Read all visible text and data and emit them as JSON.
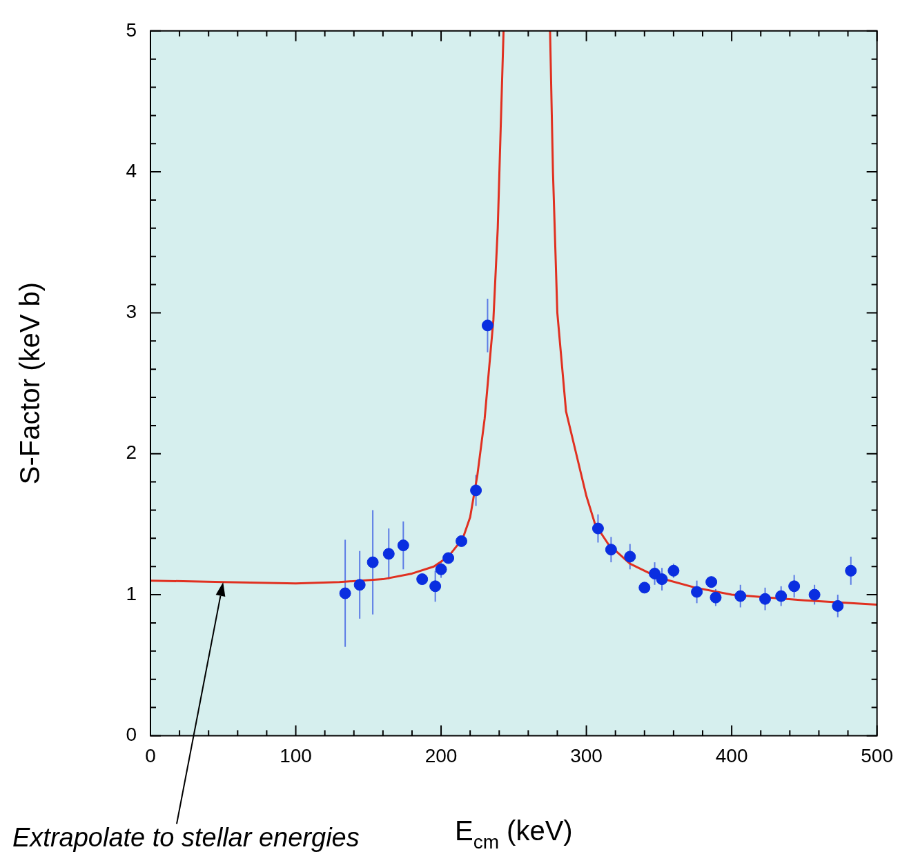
{
  "chart_data": {
    "type": "scatter",
    "xlabel": "E$_{cm}$ (keV)",
    "ylabel": "S-Factor (keV b)",
    "xlim": [
      0,
      500
    ],
    "ylim": [
      0,
      5
    ],
    "xticks": [
      0,
      {
        "value": 20,
        "label": null
      },
      {
        "value": 40,
        "label": null
      },
      {
        "value": 60,
        "label": null
      },
      {
        "value": 80,
        "label": null
      },
      100,
      {
        "value": 120,
        "label": null
      },
      {
        "value": 140,
        "label": null
      },
      {
        "value": 160,
        "label": null
      },
      {
        "value": 180,
        "label": null
      },
      200,
      {
        "value": 220,
        "label": null
      },
      {
        "value": 240,
        "label": null
      },
      {
        "value": 260,
        "label": null
      },
      {
        "value": 280,
        "label": null
      },
      300,
      {
        "value": 320,
        "label": null
      },
      {
        "value": 340,
        "label": null
      },
      {
        "value": 360,
        "label": null
      },
      {
        "value": 380,
        "label": null
      },
      400,
      {
        "value": 420,
        "label": null
      },
      {
        "value": 440,
        "label": null
      },
      {
        "value": 460,
        "label": null
      },
      {
        "value": 480,
        "label": null
      },
      500
    ],
    "yticks": [
      0,
      {
        "value": 0.2,
        "label": null
      },
      {
        "value": 0.4,
        "label": null
      },
      {
        "value": 0.6,
        "label": null
      },
      {
        "value": 0.8,
        "label": null
      },
      1,
      {
        "value": 1.2,
        "label": null
      },
      {
        "value": 1.4,
        "label": null
      },
      {
        "value": 1.6,
        "label": null
      },
      {
        "value": 1.8,
        "label": null
      },
      2,
      {
        "value": 2.2,
        "label": null
      },
      {
        "value": 2.4,
        "label": null
      },
      {
        "value": 2.6,
        "label": null
      },
      {
        "value": 2.8,
        "label": null
      },
      3,
      {
        "value": 3.2,
        "label": null
      },
      {
        "value": 3.4,
        "label": null
      },
      {
        "value": 3.6,
        "label": null
      },
      {
        "value": 3.8,
        "label": null
      },
      4,
      {
        "value": 4.2,
        "label": null
      },
      {
        "value": 4.4,
        "label": null
      },
      {
        "value": 4.6,
        "label": null
      },
      {
        "value": 4.8,
        "label": null
      },
      5
    ],
    "grid": false,
    "legend": false,
    "annotations": [
      "Extrapolate to stellar energies"
    ],
    "series": [
      {
        "marker": "circle",
        "color": "#0a2ee0",
        "x": [
          134,
          144,
          153,
          164,
          174,
          187,
          196,
          200,
          205,
          214,
          224,
          232,
          308,
          317,
          330,
          340,
          347,
          352,
          360,
          376,
          386,
          389,
          406,
          423,
          434,
          443,
          457,
          473,
          482
        ],
        "values": [
          1.01,
          1.07,
          1.23,
          1.29,
          1.35,
          1.11,
          1.06,
          1.18,
          1.26,
          1.38,
          1.74,
          2.91,
          1.47,
          1.32,
          1.27,
          1.05,
          1.15,
          1.11,
          1.17,
          1.02,
          1.09,
          0.98,
          0.99,
          0.97,
          0.99,
          1.06,
          1.0,
          0.92,
          1.17
        ],
        "errors": [
          0.38,
          0.24,
          0.37,
          0.18,
          0.17,
          0.03,
          0.11,
          0.06,
          0.03,
          0.03,
          0.11,
          0.19,
          0.1,
          0.09,
          0.09,
          0.02,
          0.08,
          0.08,
          0.05,
          0.08,
          0.04,
          0.06,
          0.08,
          0.08,
          0.07,
          0.08,
          0.07,
          0.08,
          0.1
        ]
      },
      {
        "type": "line",
        "color": "#e03020",
        "x": [
          0,
          50,
          100,
          130,
          160,
          180,
          195,
          205,
          215,
          220,
          225,
          230,
          233,
          236,
          239,
          241,
          243,
          259,
          275,
          277,
          280,
          286,
          293,
          300,
          306,
          315,
          330,
          350,
          375,
          400,
          450,
          500
        ],
        "values": [
          1.1,
          1.09,
          1.08,
          1.09,
          1.11,
          1.15,
          1.2,
          1.27,
          1.4,
          1.55,
          1.85,
          2.25,
          2.6,
          2.95,
          3.6,
          4.3,
          5,
          null,
          5,
          4,
          3.0,
          2.3,
          2.0,
          1.7,
          1.5,
          1.36,
          1.22,
          1.12,
          1.05,
          1.0,
          0.96,
          0.93
        ]
      }
    ]
  }
}
